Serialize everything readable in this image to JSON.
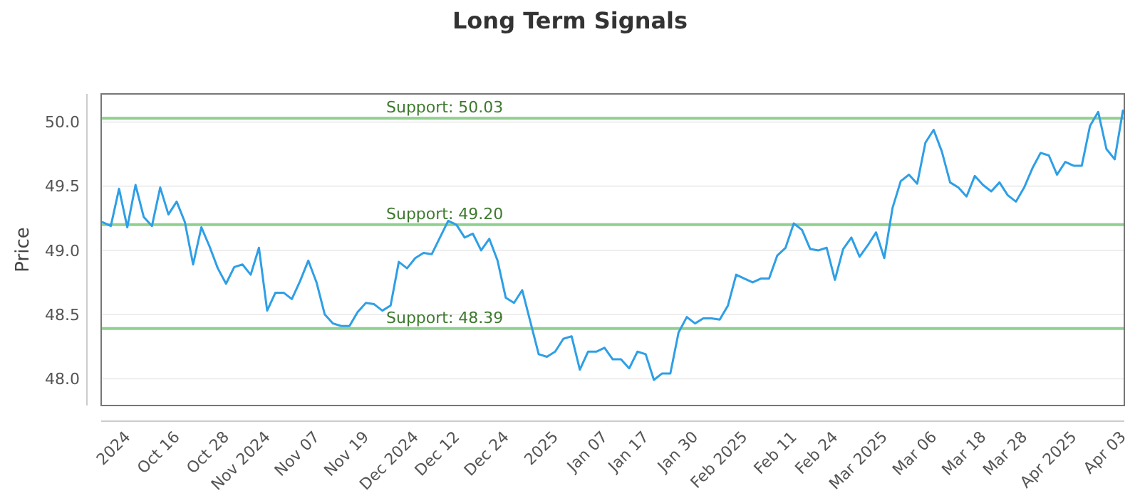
{
  "chart_data": {
    "type": "line",
    "title": "Long Term Signals",
    "ylabel": "Price",
    "categories": [
      null,
      null,
      null,
      "2024",
      null,
      null,
      null,
      null,
      null,
      "Oct 16",
      null,
      null,
      null,
      null,
      null,
      "Oct 28",
      null,
      null,
      null,
      null,
      "Nov 2024",
      null,
      null,
      null,
      null,
      null,
      "Nov 07",
      null,
      null,
      null,
      null,
      null,
      "Nov 19",
      null,
      null,
      null,
      null,
      null,
      "Dec 2024",
      null,
      null,
      null,
      null,
      "Dec 12",
      null,
      null,
      null,
      null,
      null,
      "Dec 24",
      null,
      null,
      null,
      null,
      null,
      "2025",
      null,
      null,
      null,
      null,
      null,
      "Jan 07",
      null,
      null,
      null,
      null,
      "Jan 17",
      null,
      null,
      null,
      null,
      null,
      "Jan 30",
      null,
      null,
      null,
      null,
      null,
      "Feb 2025",
      null,
      null,
      null,
      null,
      null,
      "Feb 11",
      null,
      null,
      null,
      null,
      "Feb 24",
      null,
      null,
      null,
      null,
      null,
      "Mar 2025",
      null,
      null,
      null,
      null,
      null,
      "Mar 06",
      null,
      null,
      null,
      null,
      null,
      "Mar 18",
      null,
      null,
      null,
      null,
      "Mar 28",
      null,
      null,
      null,
      null,
      null,
      "Apr 2025",
      null,
      null,
      null,
      null,
      null,
      "Apr 03"
    ],
    "series": [
      {
        "color": "#2e9fe6",
        "values": [
          49.22,
          49.19,
          49.48,
          49.18,
          49.51,
          49.26,
          49.19,
          49.49,
          49.28,
          49.38,
          49.22,
          48.89,
          49.18,
          49.03,
          48.86,
          48.74,
          48.87,
          48.89,
          48.81,
          49.02,
          48.53,
          48.67,
          48.67,
          48.62,
          48.76,
          48.92,
          48.75,
          48.5,
          48.43,
          48.41,
          48.41,
          48.52,
          48.59,
          48.58,
          48.53,
          48.57,
          48.91,
          48.86,
          48.94,
          48.98,
          48.97,
          49.1,
          49.23,
          49.2,
          49.1,
          49.13,
          49.0,
          49.09,
          48.92,
          48.63,
          48.59,
          48.69,
          48.44,
          48.19,
          48.17,
          48.21,
          48.31,
          48.33,
          48.07,
          48.21,
          48.21,
          48.24,
          48.15,
          48.15,
          48.08,
          48.21,
          48.19,
          47.99,
          48.04,
          48.04,
          48.36,
          48.48,
          48.43,
          48.47,
          48.47,
          48.46,
          48.57,
          48.81,
          48.78,
          48.75,
          48.78,
          48.78,
          48.96,
          49.02,
          49.21,
          49.16,
          49.01,
          49.0,
          49.02,
          48.77,
          49.01,
          49.1,
          48.95,
          49.04,
          49.14,
          48.94,
          49.33,
          49.54,
          49.59,
          49.52,
          49.84,
          49.94,
          49.77,
          49.53,
          49.49,
          49.42,
          49.58,
          49.51,
          49.46,
          49.53,
          49.43,
          49.38,
          49.49,
          49.64,
          49.76,
          49.74,
          49.59,
          49.69,
          49.66,
          49.66,
          49.97,
          50.08,
          49.79,
          49.71,
          50.09
        ]
      }
    ],
    "ylim": [
      47.79,
      50.22
    ],
    "yticks": [
      {
        "value": 48,
        "label": "48.0"
      },
      {
        "value": 48.5,
        "label": "48.5"
      },
      {
        "value": 49,
        "label": "49.0"
      },
      {
        "value": 49.5,
        "label": "49.5"
      },
      {
        "value": 50,
        "label": "50.0"
      }
    ],
    "grid": "y",
    "marker": "none",
    "line_style": "solid",
    "ref_lines": [
      {
        "axis": "y",
        "value": 50.03,
        "label": "Support: 50.03",
        "color": "#8fd08f"
      },
      {
        "axis": "y",
        "value": 49.2,
        "label": "Support: 49.20",
        "color": "#8fd08f"
      },
      {
        "axis": "y",
        "value": 48.39,
        "label": "Support: 48.39",
        "color": "#8fd08f"
      }
    ]
  }
}
